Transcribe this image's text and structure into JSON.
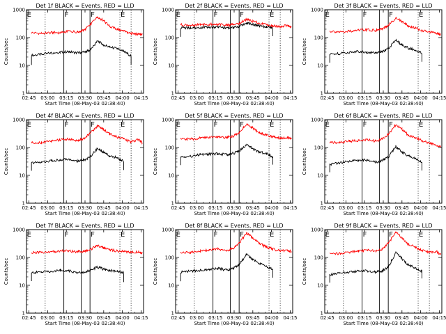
{
  "figure": {
    "title": ""
  },
  "chart_data": [
    {
      "type": "line",
      "title": "Det 1f BLACK = Events, RED = LLD",
      "xlabel": "Start Time (08-May-03 02:38:40)",
      "ylabel": "Counts/sec",
      "yscale": "log",
      "ylim": [
        1,
        1000
      ],
      "xlim": [
        "02:43",
        "04:17"
      ],
      "xticks": [
        "02:45",
        "03:00",
        "03:15",
        "03:30",
        "03:45",
        "04:00",
        "04:15"
      ],
      "yticks": [
        "1",
        "10",
        "100",
        "1000"
      ],
      "flags": [
        "E",
        "F",
        "F",
        "E"
      ],
      "solid_vlines": [
        "03:13",
        "03:27",
        "03:34"
      ],
      "dotted_vlines": [
        "02:58",
        "03:58",
        "04:07"
      ],
      "x": [
        "02:47",
        "02:55",
        "03:03",
        "03:10",
        "03:17",
        "03:24",
        "03:29",
        "03:34",
        "03:40",
        "03:45",
        "03:50",
        "03:56",
        "04:01",
        "04:07",
        "04:13",
        "04:16"
      ],
      "series": [
        {
          "name": "Events",
          "color": "#000000",
          "values": [
            23,
            25,
            28,
            30,
            31,
            28,
            30,
            35,
            75,
            55,
            45,
            40,
            32,
            22,
            0,
            0
          ]
        },
        {
          "name": "LLD",
          "color": "#ff0000",
          "values": [
            150,
            140,
            150,
            150,
            170,
            160,
            180,
            280,
            560,
            400,
            250,
            200,
            170,
            140,
            130,
            130
          ]
        }
      ]
    },
    {
      "type": "line",
      "title": "Det 2f BLACK = Events, RED = LLD",
      "xlabel": "Start Time (08-May-03 02:38:40)",
      "ylabel": "Counts/sec",
      "yscale": "log",
      "ylim": [
        1,
        1000
      ],
      "xlim": [
        "02:43",
        "04:17"
      ],
      "xticks": [
        "02:45",
        "03:00",
        "03:15",
        "03:30",
        "03:45",
        "04:00",
        "04:15"
      ],
      "yticks": [
        "1",
        "10",
        "100",
        "1000"
      ],
      "flags": [
        "E",
        "F",
        "F",
        "E"
      ],
      "solid_vlines": [
        "03:13",
        "03:27",
        "03:34"
      ],
      "dotted_vlines": [
        "02:58",
        "03:58",
        "04:07"
      ],
      "x": [
        "02:47",
        "02:55",
        "03:03",
        "03:10",
        "03:17",
        "03:24",
        "03:29",
        "03:34",
        "03:40",
        "03:45",
        "03:50",
        "03:56",
        "04:01",
        "04:07",
        "04:13",
        "04:16"
      ],
      "series": [
        {
          "name": "Events",
          "color": "#000000",
          "values": [
            230,
            220,
            230,
            240,
            240,
            220,
            230,
            250,
            330,
            300,
            270,
            240,
            230,
            0,
            0,
            0
          ]
        },
        {
          "name": "LLD",
          "color": "#ff0000",
          "values": [
            290,
            280,
            290,
            300,
            300,
            280,
            290,
            320,
            450,
            380,
            330,
            290,
            260,
            250,
            270,
            240
          ]
        }
      ]
    },
    {
      "type": "line",
      "title": "Det 3f BLACK = Events, RED = LLD",
      "xlabel": "Start Time (08-May-03 02:38:40)",
      "ylabel": "Counts/sec",
      "yscale": "log",
      "ylim": [
        1,
        1000
      ],
      "xlim": [
        "02:43",
        "04:17"
      ],
      "xticks": [
        "02:45",
        "03:00",
        "03:15",
        "03:30",
        "03:45",
        "04:00",
        "04:15"
      ],
      "yticks": [
        "1",
        "10",
        "100",
        "1000"
      ],
      "flags": [
        "E",
        "F",
        "F",
        "E"
      ],
      "solid_vlines": [
        "03:13",
        "03:27",
        "03:34"
      ],
      "dotted_vlines": [
        "02:58",
        "03:58",
        "04:07"
      ],
      "x": [
        "02:47",
        "02:55",
        "03:03",
        "03:10",
        "03:17",
        "03:24",
        "03:29",
        "03:34",
        "03:40",
        "03:45",
        "03:50",
        "03:56",
        "04:01",
        "04:07",
        "04:13",
        "04:16"
      ],
      "series": [
        {
          "name": "Events",
          "color": "#000000",
          "values": [
            25,
            27,
            30,
            32,
            30,
            28,
            31,
            40,
            80,
            55,
            42,
            36,
            28,
            0,
            0,
            0
          ]
        },
        {
          "name": "LLD",
          "color": "#ff0000",
          "values": [
            170,
            160,
            170,
            180,
            190,
            180,
            200,
            280,
            500,
            380,
            260,
            220,
            180,
            160,
            140,
            130
          ]
        }
      ]
    },
    {
      "type": "line",
      "title": "Det 4f BLACK = Events, RED = LLD",
      "xlabel": "Start Time (08-May-03 02:38:40)",
      "ylabel": "Counts/sec",
      "yscale": "log",
      "ylim": [
        1,
        1000
      ],
      "xlim": [
        "02:43",
        "04:17"
      ],
      "xticks": [
        "02:45",
        "03:00",
        "03:15",
        "03:30",
        "03:45",
        "04:00",
        "04:15"
      ],
      "yticks": [
        "1",
        "10",
        "100",
        "1000"
      ],
      "flags": [
        "E",
        "F",
        "F",
        "E"
      ],
      "solid_vlines": [
        "03:13",
        "03:27",
        "03:34"
      ],
      "dotted_vlines": [
        "02:58",
        "03:58",
        "04:07"
      ],
      "x": [
        "02:47",
        "02:55",
        "03:03",
        "03:10",
        "03:17",
        "03:24",
        "03:29",
        "03:34",
        "03:40",
        "03:45",
        "03:50",
        "03:56",
        "04:01",
        "04:07",
        "04:13",
        "04:16"
      ],
      "series": [
        {
          "name": "Events",
          "color": "#000000",
          "values": [
            28,
            30,
            33,
            36,
            38,
            32,
            35,
            45,
            95,
            65,
            50,
            42,
            32,
            0,
            0,
            0
          ]
        },
        {
          "name": "LLD",
          "color": "#ff0000",
          "values": [
            150,
            150,
            170,
            190,
            200,
            180,
            210,
            320,
            600,
            450,
            300,
            240,
            200,
            160,
            200,
            150
          ]
        }
      ]
    },
    {
      "type": "line",
      "title": "Det 5f BLACK = Events, RED = LLD",
      "xlabel": "Start Time (08-May-03 02:38:40)",
      "ylabel": "Counts/sec",
      "yscale": "log",
      "ylim": [
        1,
        1000
      ],
      "xlim": [
        "02:43",
        "04:17"
      ],
      "xticks": [
        "02:45",
        "03:00",
        "03:15",
        "03:30",
        "03:45",
        "04:00",
        "04:15"
      ],
      "yticks": [
        "1",
        "10",
        "100",
        "1000"
      ],
      "flags": [
        "E",
        "F",
        "F",
        "E"
      ],
      "solid_vlines": [
        "03:13",
        "03:27",
        "03:34"
      ],
      "dotted_vlines": [
        "02:58",
        "03:58",
        "04:07"
      ],
      "x": [
        "02:47",
        "02:55",
        "03:03",
        "03:10",
        "03:17",
        "03:24",
        "03:29",
        "03:34",
        "03:40",
        "03:45",
        "03:50",
        "03:56",
        "04:01",
        "04:07",
        "04:13",
        "04:16"
      ],
      "series": [
        {
          "name": "Events",
          "color": "#000000",
          "values": [
            45,
            48,
            55,
            58,
            60,
            55,
            60,
            75,
            130,
            90,
            70,
            60,
            45,
            0,
            0,
            0
          ]
        },
        {
          "name": "LLD",
          "color": "#ff0000",
          "values": [
            200,
            200,
            220,
            230,
            240,
            230,
            250,
            350,
            700,
            500,
            350,
            280,
            240,
            220,
            230,
            200
          ]
        }
      ]
    },
    {
      "type": "line",
      "title": "Det 6f BLACK = Events, RED = LLD",
      "xlabel": "Start Time (08-May-03 02:38:40)",
      "ylabel": "Counts/sec",
      "yscale": "log",
      "ylim": [
        1,
        1000
      ],
      "xlim": [
        "02:43",
        "04:17"
      ],
      "xticks": [
        "02:45",
        "03:00",
        "03:15",
        "03:30",
        "03:45",
        "04:00",
        "04:15"
      ],
      "yticks": [
        "1",
        "10",
        "100",
        "1000"
      ],
      "flags": [
        "E",
        "F",
        "F",
        "E"
      ],
      "solid_vlines": [
        "03:13",
        "03:27",
        "03:34"
      ],
      "dotted_vlines": [
        "02:58",
        "03:58",
        "04:07"
      ],
      "x": [
        "02:47",
        "02:55",
        "03:03",
        "03:10",
        "03:17",
        "03:24",
        "03:29",
        "03:34",
        "03:40",
        "03:45",
        "03:50",
        "03:56",
        "04:01",
        "04:07",
        "04:13",
        "04:16"
      ],
      "series": [
        {
          "name": "Events",
          "color": "#000000",
          "values": [
            25,
            28,
            32,
            35,
            35,
            30,
            34,
            45,
            110,
            70,
            50,
            40,
            30,
            0,
            0,
            0
          ]
        },
        {
          "name": "LLD",
          "color": "#ff0000",
          "values": [
            150,
            150,
            170,
            180,
            190,
            170,
            200,
            300,
            650,
            450,
            280,
            220,
            180,
            140,
            120,
            110
          ]
        }
      ]
    },
    {
      "type": "line",
      "title": "Det 7f BLACK = Events, RED = LLD",
      "xlabel": "Start Time (08-May-03 02:38:40)",
      "ylabel": "Counts/sec",
      "yscale": "log",
      "ylim": [
        1,
        1000
      ],
      "xlim": [
        "02:43",
        "04:17"
      ],
      "xticks": [
        "02:45",
        "03:00",
        "03:15",
        "03:30",
        "03:45",
        "04:00",
        "04:15"
      ],
      "yticks": [
        "1",
        "10",
        "100",
        "1000"
      ],
      "flags": [
        "E",
        "F",
        "F",
        "E"
      ],
      "solid_vlines": [
        "03:13",
        "03:27",
        "03:34"
      ],
      "dotted_vlines": [
        "02:58",
        "03:58",
        "04:07"
      ],
      "x": [
        "02:47",
        "02:55",
        "03:03",
        "03:10",
        "03:17",
        "03:24",
        "03:29",
        "03:34",
        "03:40",
        "03:45",
        "03:50",
        "03:56",
        "04:01",
        "04:07",
        "04:13",
        "04:16"
      ],
      "series": [
        {
          "name": "Events",
          "color": "#000000",
          "values": [
            28,
            30,
            32,
            34,
            33,
            28,
            30,
            34,
            45,
            38,
            34,
            32,
            28,
            0,
            0,
            0
          ]
        },
        {
          "name": "LLD",
          "color": "#ff0000",
          "values": [
            150,
            150,
            160,
            170,
            170,
            160,
            170,
            190,
            260,
            220,
            190,
            170,
            160,
            150,
            160,
            140
          ]
        }
      ]
    },
    {
      "type": "line",
      "title": "Det 8f BLACK = Events, RED = LLD",
      "xlabel": "Start Time (08-May-03 02:38:40)",
      "ylabel": "Counts/sec",
      "yscale": "log",
      "ylim": [
        1,
        1000
      ],
      "xlim": [
        "02:43",
        "04:17"
      ],
      "xticks": [
        "02:45",
        "03:00",
        "03:15",
        "03:30",
        "03:45",
        "04:00",
        "04:15"
      ],
      "yticks": [
        "1",
        "10",
        "100",
        "1000"
      ],
      "flags": [
        "E",
        "F",
        "F",
        "E"
      ],
      "solid_vlines": [
        "03:13",
        "03:27",
        "03:34"
      ],
      "dotted_vlines": [
        "02:58",
        "03:58",
        "04:07"
      ],
      "x": [
        "02:47",
        "02:55",
        "03:03",
        "03:10",
        "03:17",
        "03:24",
        "03:29",
        "03:34",
        "03:40",
        "03:45",
        "03:50",
        "03:56",
        "04:01",
        "04:07",
        "04:13",
        "04:16"
      ],
      "series": [
        {
          "name": "Events",
          "color": "#000000",
          "values": [
            30,
            32,
            35,
            38,
            40,
            35,
            40,
            55,
            130,
            85,
            60,
            48,
            36,
            0,
            0,
            0
          ]
        },
        {
          "name": "LLD",
          "color": "#ff0000",
          "values": [
            150,
            150,
            170,
            190,
            200,
            180,
            210,
            330,
            750,
            500,
            320,
            240,
            200,
            170,
            180,
            160
          ]
        }
      ]
    },
    {
      "type": "line",
      "title": "Det 9f BLACK = Events, RED = LLD",
      "xlabel": "Start Time (08-May-03 02:38:40)",
      "ylabel": "Counts/sec",
      "yscale": "log",
      "ylim": [
        1,
        1000
      ],
      "xlim": [
        "02:43",
        "04:17"
      ],
      "xticks": [
        "02:45",
        "03:00",
        "03:15",
        "03:30",
        "03:45",
        "04:00",
        "04:15"
      ],
      "yticks": [
        "1",
        "10",
        "100",
        "1000"
      ],
      "flags": [
        "E",
        "F",
        "F",
        "E"
      ],
      "solid_vlines": [
        "03:13",
        "03:27",
        "03:34"
      ],
      "dotted_vlines": [
        "02:58",
        "03:58",
        "04:07"
      ],
      "x": [
        "02:47",
        "02:55",
        "03:03",
        "03:10",
        "03:17",
        "03:24",
        "03:29",
        "03:34",
        "03:40",
        "03:45",
        "03:50",
        "03:56",
        "04:01",
        "04:07",
        "04:13",
        "04:16"
      ],
      "series": [
        {
          "name": "Events",
          "color": "#000000",
          "values": [
            24,
            27,
            30,
            33,
            33,
            30,
            33,
            45,
            150,
            90,
            55,
            42,
            32,
            0,
            0,
            0
          ]
        },
        {
          "name": "LLD",
          "color": "#ff0000",
          "values": [
            140,
            140,
            160,
            170,
            180,
            170,
            200,
            320,
            800,
            500,
            300,
            230,
            180,
            150,
            160,
            130
          ]
        }
      ]
    }
  ]
}
